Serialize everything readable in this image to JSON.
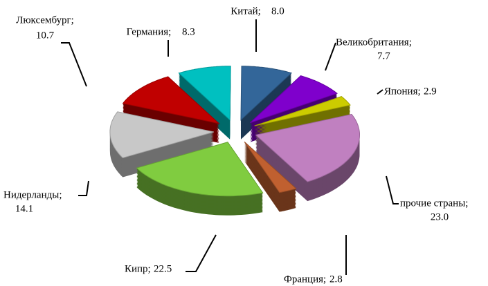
{
  "chart_data": {
    "type": "pie3d",
    "categories": [
      "Люксембург;",
      "Германия;",
      "Китай;",
      "Великобритания;",
      "Япония;",
      "прочие страны;",
      "Франция;",
      "Кипр;",
      "Нидерланды;"
    ],
    "values": [
      10.7,
      8.3,
      8.0,
      7.7,
      2.9,
      23.0,
      2.8,
      22.5,
      14.1
    ],
    "value_labels": [
      "10.7",
      "8.3",
      "8.0",
      "7.7",
      "2.9",
      "23.0",
      "2.8",
      "22.5",
      "14.1"
    ],
    "colors": [
      "#c00000",
      "#00c0c0",
      "#336699",
      "#7f00cc",
      "#cccc00",
      "#c080c0",
      "#c06030",
      "#80cc40",
      "#c8c8c8"
    ]
  }
}
